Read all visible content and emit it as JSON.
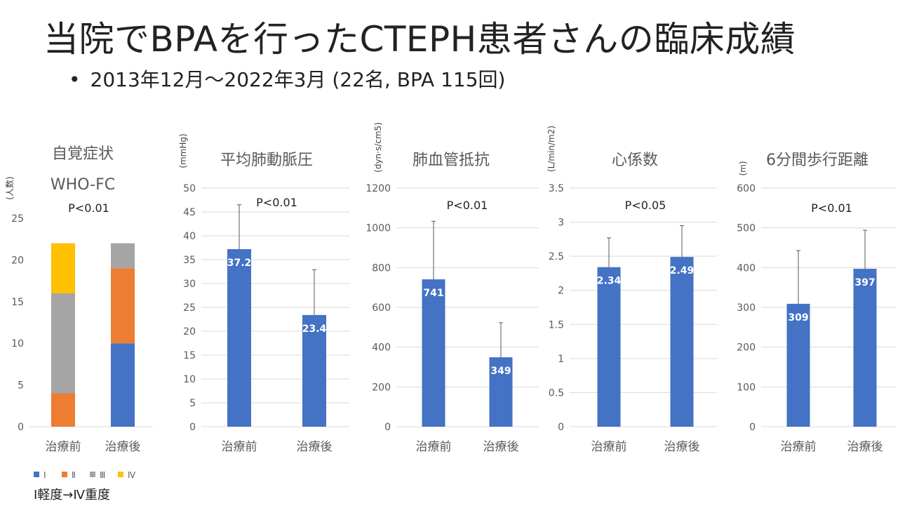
{
  "slide": {
    "title": "当院でBPAを行ったCTEPH患者さんの臨床成績",
    "bullet": "•",
    "subtitle": "2013年12月～2022年3月 (22名, BPA 115回)",
    "note": "Ⅰ軽度→Ⅳ重度"
  },
  "colors": {
    "bar": "#4472C4",
    "class_I": "#4472C4",
    "class_II": "#ED7D31",
    "class_III": "#A5A5A5",
    "class_IV": "#FFC000",
    "grid": "#D9D9D9"
  },
  "chart_data": [
    {
      "type": "bar",
      "stacked": true,
      "title": [
        "自覚症状",
        "WHO-FC"
      ],
      "ylabel": "(人数)",
      "annotation": "P<0.01",
      "categories": [
        "治療前",
        "治療後"
      ],
      "ylim": [
        0,
        25
      ],
      "yticks": [
        0,
        5,
        10,
        15,
        20,
        25
      ],
      "grid": false,
      "legend": "bottom-left",
      "series": [
        {
          "name": "Ⅰ",
          "values": [
            0,
            10
          ]
        },
        {
          "name": "Ⅱ",
          "values": [
            4,
            9
          ]
        },
        {
          "name": "Ⅲ",
          "values": [
            12,
            3
          ]
        },
        {
          "name": "Ⅳ",
          "values": [
            6,
            0
          ]
        }
      ]
    },
    {
      "type": "bar",
      "title": "平均肺動脈圧",
      "ylabel": "(mmHg)",
      "annotation": "P<0.01",
      "categories": [
        "治療前",
        "治療後"
      ],
      "values": [
        37.2,
        23.4
      ],
      "error_upper": [
        46.5,
        32.9
      ],
      "data_labels": [
        "37.2",
        "23.4"
      ],
      "ylim": [
        0,
        50
      ],
      "yticks": [
        0,
        5,
        10,
        15,
        20,
        25,
        30,
        35,
        40,
        45,
        50
      ],
      "grid": true
    },
    {
      "type": "bar",
      "title": "肺血管抵抗",
      "ylabel": "(dyn·s/cm5)",
      "annotation": "P<0.01",
      "categories": [
        "治療前",
        "治療後"
      ],
      "values": [
        741,
        349
      ],
      "error_upper": [
        1033,
        523
      ],
      "data_labels": [
        "741",
        "349"
      ],
      "ylim": [
        0,
        1200
      ],
      "yticks": [
        0,
        200,
        400,
        600,
        800,
        1000,
        1200
      ],
      "grid": true
    },
    {
      "type": "bar",
      "title": "心係数",
      "ylabel": "(L/min/m2)",
      "annotation": "P<0.05",
      "categories": [
        "治療前",
        "治療後"
      ],
      "values": [
        2.34,
        2.49
      ],
      "error_upper": [
        2.77,
        2.95
      ],
      "data_labels": [
        "2.34",
        "2.49"
      ],
      "ylim": [
        0,
        3.5
      ],
      "yticks": [
        0,
        0.5,
        1,
        1.5,
        2,
        2.5,
        3,
        3.5
      ],
      "grid": true
    },
    {
      "type": "bar",
      "title": "6分間歩行距離",
      "ylabel": "(m)",
      "annotation": "P<0.01",
      "categories": [
        "治療前",
        "治療後"
      ],
      "values": [
        309,
        397
      ],
      "error_upper": [
        443,
        494
      ],
      "data_labels": [
        "309",
        "397"
      ],
      "ylim": [
        0,
        600
      ],
      "yticks": [
        0,
        100,
        200,
        300,
        400,
        500,
        600
      ],
      "grid": true
    }
  ]
}
